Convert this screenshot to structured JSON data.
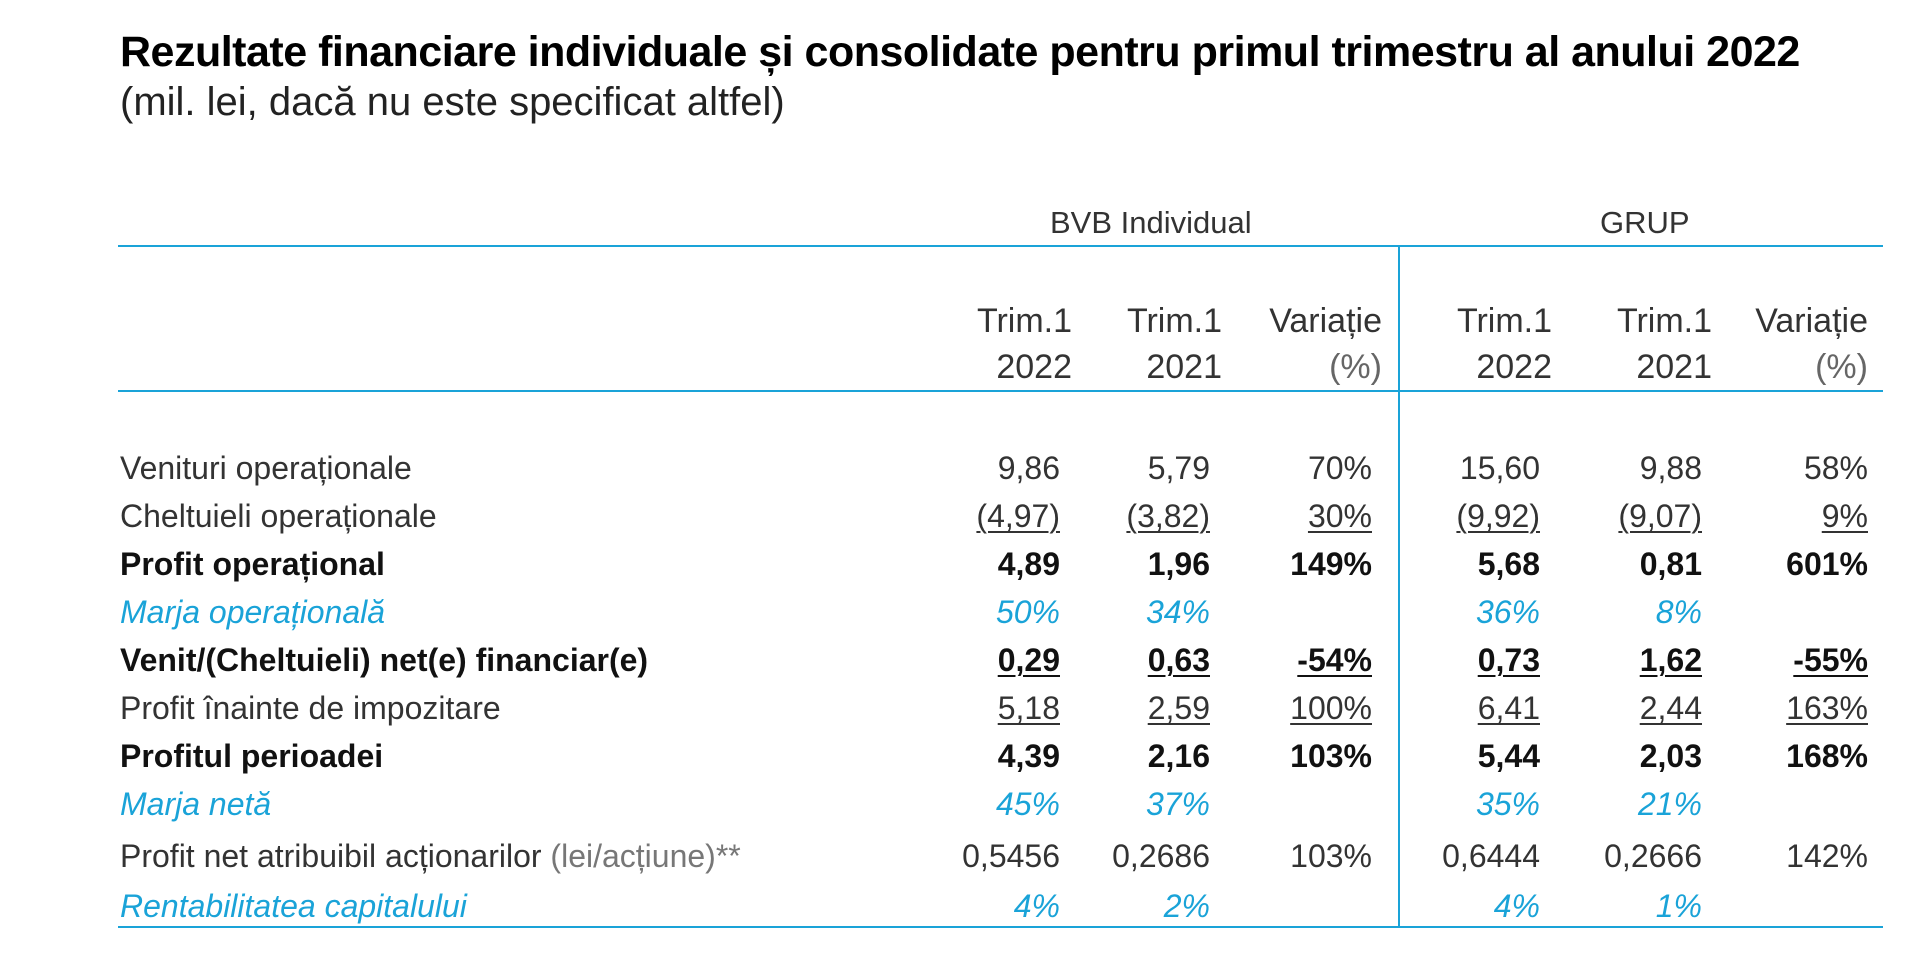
{
  "title": "Rezultate financiare individuale și consolidate pentru primul trimestru al anului 2022",
  "subtitle": "(mil. lei, dacă nu este specificat altfel)",
  "groups": {
    "individual": "BVB Individual",
    "group": "GRUP"
  },
  "columns": [
    {
      "line1": "Trim.1",
      "line2": "2022"
    },
    {
      "line1": "Trim.1",
      "line2": "2021"
    },
    {
      "line1": "Variație",
      "line2": "(%)"
    },
    {
      "line1": "Trim.1",
      "line2": "2022"
    },
    {
      "line1": "Trim.1",
      "line2": "2021"
    },
    {
      "line1": "Variație",
      "line2": "(%)"
    }
  ],
  "rows": [
    {
      "label": "Venituri operaționale",
      "unit": "",
      "style": "normal",
      "values": [
        "9,86",
        "5,79",
        "70%",
        "15,60",
        "9,88",
        "58%"
      ],
      "underlined": false
    },
    {
      "label": "Cheltuieli operaționale",
      "unit": "",
      "style": "normal",
      "values": [
        "(4,97)",
        "(3,82)",
        "30%",
        "(9,92)",
        "(9,07)",
        "9%"
      ],
      "underlined": true
    },
    {
      "label": "Profit operațional",
      "unit": "",
      "style": "bold",
      "values": [
        "4,89",
        "1,96",
        "149%",
        "5,68",
        "0,81",
        "601%"
      ],
      "underlined": false
    },
    {
      "label": "Marja operațională",
      "unit": "",
      "style": "blue",
      "values": [
        "50%",
        "34%",
        "",
        "36%",
        "8%",
        ""
      ],
      "underlined": false
    },
    {
      "label": "Venit/(Cheltuieli) net(e) financiar(e)",
      "unit": "",
      "style": "bold",
      "values": [
        "0,29",
        "0,63",
        "-54%",
        "0,73",
        "1,62",
        "-55%"
      ],
      "underlined": true
    },
    {
      "label": "Profit înainte de impozitare",
      "unit": "",
      "style": "normal",
      "values": [
        "5,18",
        "2,59",
        "100%",
        "6,41",
        "2,44",
        "163%"
      ],
      "underlined": true
    },
    {
      "label": "Profitul perioadei",
      "unit": "",
      "style": "bold",
      "values": [
        "4,39",
        "2,16",
        "103%",
        "5,44",
        "2,03",
        "168%"
      ],
      "underlined": false
    },
    {
      "label": "Marja netă",
      "unit": "",
      "style": "blue",
      "values": [
        "45%",
        "37%",
        "",
        "35%",
        "21%",
        ""
      ],
      "underlined": false
    },
    {
      "label": "Profit net atribuibil acționarilor ",
      "unit": "(lei/acțiune)**",
      "style": "normal",
      "values": [
        "0,5456",
        "0,2686",
        "103%",
        "0,6444",
        "0,2666",
        "142%"
      ],
      "underlined": false
    },
    {
      "label": "Rentabilitatea capitalului",
      "unit": "",
      "style": "blue",
      "values": [
        "4%",
        "2%",
        "",
        "4%",
        "1%",
        ""
      ],
      "underlined": false
    }
  ],
  "colors": {
    "accent": "#1aa3d8",
    "text": "#333333"
  }
}
